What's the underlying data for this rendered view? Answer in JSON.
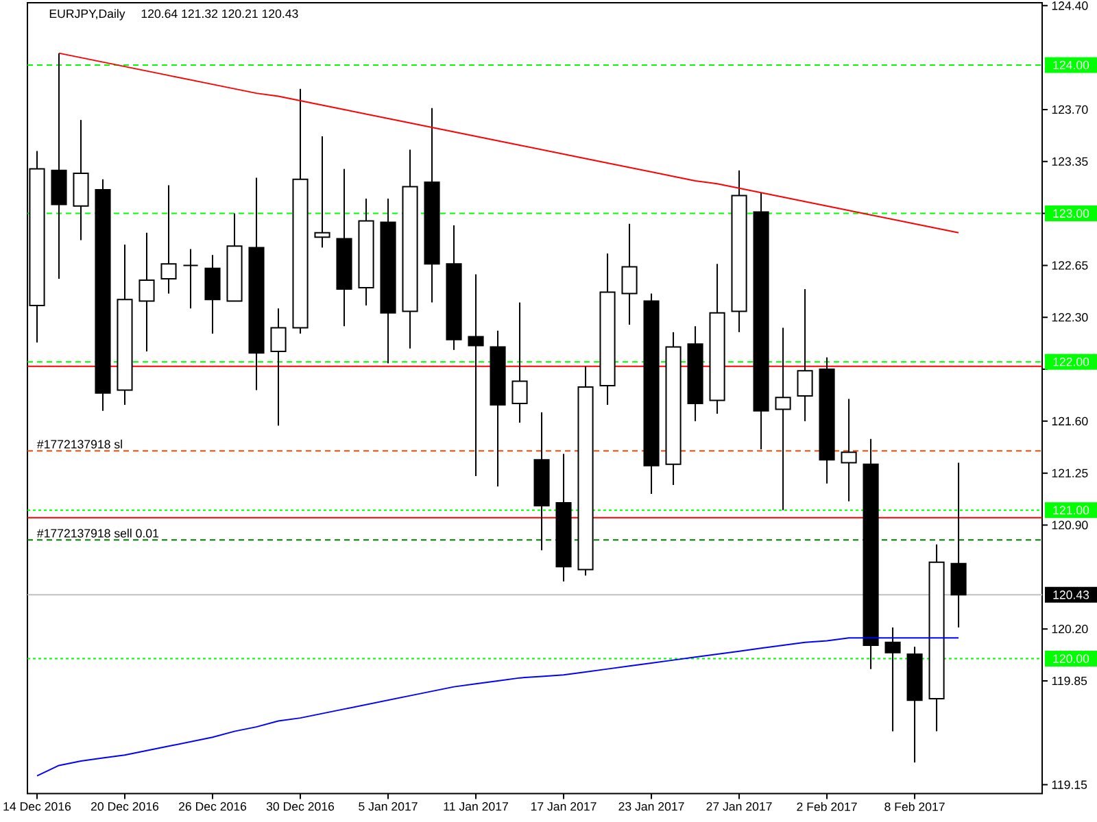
{
  "chart_data": {
    "type": "candlestick",
    "title": "EURJPY,Daily",
    "subtitle": "120.64 121.32 120.21 120.43",
    "categories": [
      "14 Dec 2016",
      null,
      null,
      null,
      "20 Dec 2016",
      null,
      null,
      null,
      "26 Dec 2016",
      null,
      null,
      null,
      "30 Dec 2016",
      null,
      null,
      null,
      "5 Jan 2017",
      null,
      null,
      null,
      "11 Jan 2017",
      null,
      null,
      null,
      "17 Jan 2017",
      null,
      null,
      null,
      "23 Jan 2017",
      null,
      null,
      null,
      "27 Jan 2017",
      null,
      null,
      null,
      "2 Feb 2017",
      null,
      null,
      null,
      "8 Feb 2017",
      null,
      null
    ],
    "ohlc": [
      [
        122.38,
        123.42,
        122.13,
        123.3
      ],
      [
        123.29,
        124.08,
        122.56,
        123.06
      ],
      [
        123.05,
        123.63,
        122.82,
        123.27
      ],
      [
        123.16,
        123.23,
        121.67,
        121.79
      ],
      [
        121.81,
        122.79,
        121.71,
        122.42
      ],
      [
        122.41,
        122.87,
        122.07,
        122.55
      ],
      [
        122.56,
        123.19,
        122.46,
        122.66
      ],
      [
        122.65,
        122.76,
        122.36,
        122.65
      ],
      [
        122.63,
        122.72,
        122.19,
        122.42
      ],
      [
        122.41,
        123.0,
        122.41,
        122.78
      ],
      [
        122.77,
        123.24,
        121.81,
        122.06
      ],
      [
        122.07,
        122.36,
        121.57,
        122.23
      ],
      [
        122.23,
        123.84,
        122.19,
        123.23
      ],
      [
        122.84,
        123.52,
        122.77,
        122.87
      ],
      [
        122.83,
        123.3,
        122.24,
        122.49
      ],
      [
        122.5,
        123.1,
        122.38,
        122.95
      ],
      [
        122.94,
        123.1,
        121.99,
        122.33
      ],
      [
        122.34,
        123.43,
        122.09,
        123.18
      ],
      [
        123.21,
        123.71,
        122.4,
        122.66
      ],
      [
        122.66,
        122.92,
        122.08,
        122.15
      ],
      [
        122.17,
        122.59,
        121.23,
        122.11
      ],
      [
        122.1,
        122.21,
        121.16,
        121.71
      ],
      [
        121.72,
        122.4,
        121.59,
        121.87
      ],
      [
        121.34,
        121.66,
        120.73,
        121.03
      ],
      [
        121.05,
        121.38,
        120.52,
        120.62
      ],
      [
        120.6,
        121.97,
        120.56,
        121.83
      ],
      [
        121.84,
        122.73,
        121.71,
        122.47
      ],
      [
        122.46,
        122.93,
        122.25,
        122.64
      ],
      [
        122.41,
        122.46,
        121.11,
        121.3
      ],
      [
        121.31,
        122.2,
        121.17,
        122.1
      ],
      [
        122.12,
        122.24,
        121.6,
        121.72
      ],
      [
        121.74,
        122.66,
        121.65,
        122.33
      ],
      [
        122.34,
        123.29,
        122.2,
        123.12
      ],
      [
        123.01,
        123.14,
        121.41,
        121.67
      ],
      [
        121.68,
        122.23,
        121.0,
        121.76
      ],
      [
        121.77,
        122.49,
        121.6,
        121.94
      ],
      [
        121.95,
        122.03,
        121.18,
        121.34
      ],
      [
        121.32,
        121.75,
        121.06,
        121.39
      ],
      [
        121.31,
        121.48,
        119.93,
        120.09
      ],
      [
        120.11,
        120.21,
        119.51,
        120.04
      ],
      [
        120.03,
        120.08,
        119.3,
        119.72
      ],
      [
        119.73,
        120.77,
        119.51,
        120.65
      ],
      [
        120.64,
        121.32,
        120.21,
        120.43
      ]
    ],
    "series": [
      {
        "type": "line",
        "color": "#0000ff",
        "values": [
          119.21,
          119.28,
          119.31,
          119.33,
          119.35,
          119.38,
          119.41,
          119.44,
          119.47,
          119.51,
          119.54,
          119.58,
          119.6,
          119.63,
          119.66,
          119.69,
          119.72,
          119.75,
          119.78,
          119.81,
          119.83,
          119.85,
          119.87,
          119.88,
          119.89,
          119.91,
          119.93,
          119.95,
          119.97,
          119.99,
          120.01,
          120.03,
          120.05,
          120.07,
          120.09,
          120.11,
          120.12,
          120.14,
          120.14,
          120.14,
          120.14,
          120.14,
          120.14
        ]
      },
      {
        "type": "line",
        "color": "#ff0000",
        "values": [
          null,
          124.08,
          124.05,
          124.02,
          123.99,
          123.96,
          123.93,
          123.9,
          123.87,
          123.84,
          123.81,
          123.79,
          123.76,
          123.73,
          123.7,
          123.67,
          123.64,
          123.61,
          123.58,
          123.55,
          123.52,
          123.49,
          123.46,
          123.43,
          123.4,
          123.37,
          123.34,
          123.31,
          123.28,
          123.25,
          123.22,
          123.2,
          123.17,
          123.14,
          123.11,
          123.08,
          123.05,
          123.02,
          122.99,
          122.96,
          122.93,
          122.9,
          122.87
        ]
      }
    ],
    "ylim": [
      119.09,
      124.42
    ],
    "yticks": [
      {
        "value": 124.4,
        "label": "124.40"
      },
      {
        "value": 123.7,
        "label": "123.70"
      },
      {
        "value": 123.35,
        "label": "123.35"
      },
      {
        "value": 123.0,
        "label": null
      },
      {
        "value": 122.65,
        "label": "122.65"
      },
      {
        "value": 122.3,
        "label": "122.30"
      },
      {
        "value": 121.95,
        "label": null
      },
      {
        "value": 121.6,
        "label": "121.60"
      },
      {
        "value": 121.25,
        "label": "121.25"
      },
      {
        "value": 120.9,
        "label": "120.90"
      },
      {
        "value": 120.2,
        "label": "120.20"
      },
      {
        "value": 119.85,
        "label": "119.85"
      },
      {
        "value": 119.15,
        "label": "119.15"
      }
    ],
    "ref_lines": [
      {
        "axis": "y",
        "value": 124.0,
        "label": "124.00",
        "color": "#00ff00",
        "line_style": "dashed"
      },
      {
        "axis": "y",
        "value": 123.0,
        "label": "123.00",
        "color": "#00ff00",
        "line_style": "dashed"
      },
      {
        "axis": "y",
        "value": 122.0,
        "label": "122.00",
        "color": "#00ff00",
        "line_style": "dashed"
      },
      {
        "axis": "y",
        "value": 121.97,
        "color": "#ff0000",
        "line_style": "solid"
      },
      {
        "axis": "y",
        "value": 121.4,
        "color": "#ff4500",
        "line_style": "dashed"
      },
      {
        "axis": "y",
        "value": 121.0,
        "label": "121.00",
        "color": "#00ff00",
        "line_style": "dotted"
      },
      {
        "axis": "y",
        "value": 120.95,
        "color": "#ff0000",
        "line_style": "solid"
      },
      {
        "axis": "y",
        "value": 120.8,
        "color": "#008000",
        "line_style": "dashed"
      },
      {
        "axis": "y",
        "value": 120.43,
        "label": "120.43",
        "color": "#c0c0c0",
        "line_style": "solid"
      },
      {
        "axis": "y",
        "value": 120.0,
        "label": "120.00",
        "color": "#00ff00",
        "line_style": "dotted"
      }
    ],
    "annotations": [
      "#1772137918 sl",
      "#1772137918 sell 0.01"
    ]
  }
}
